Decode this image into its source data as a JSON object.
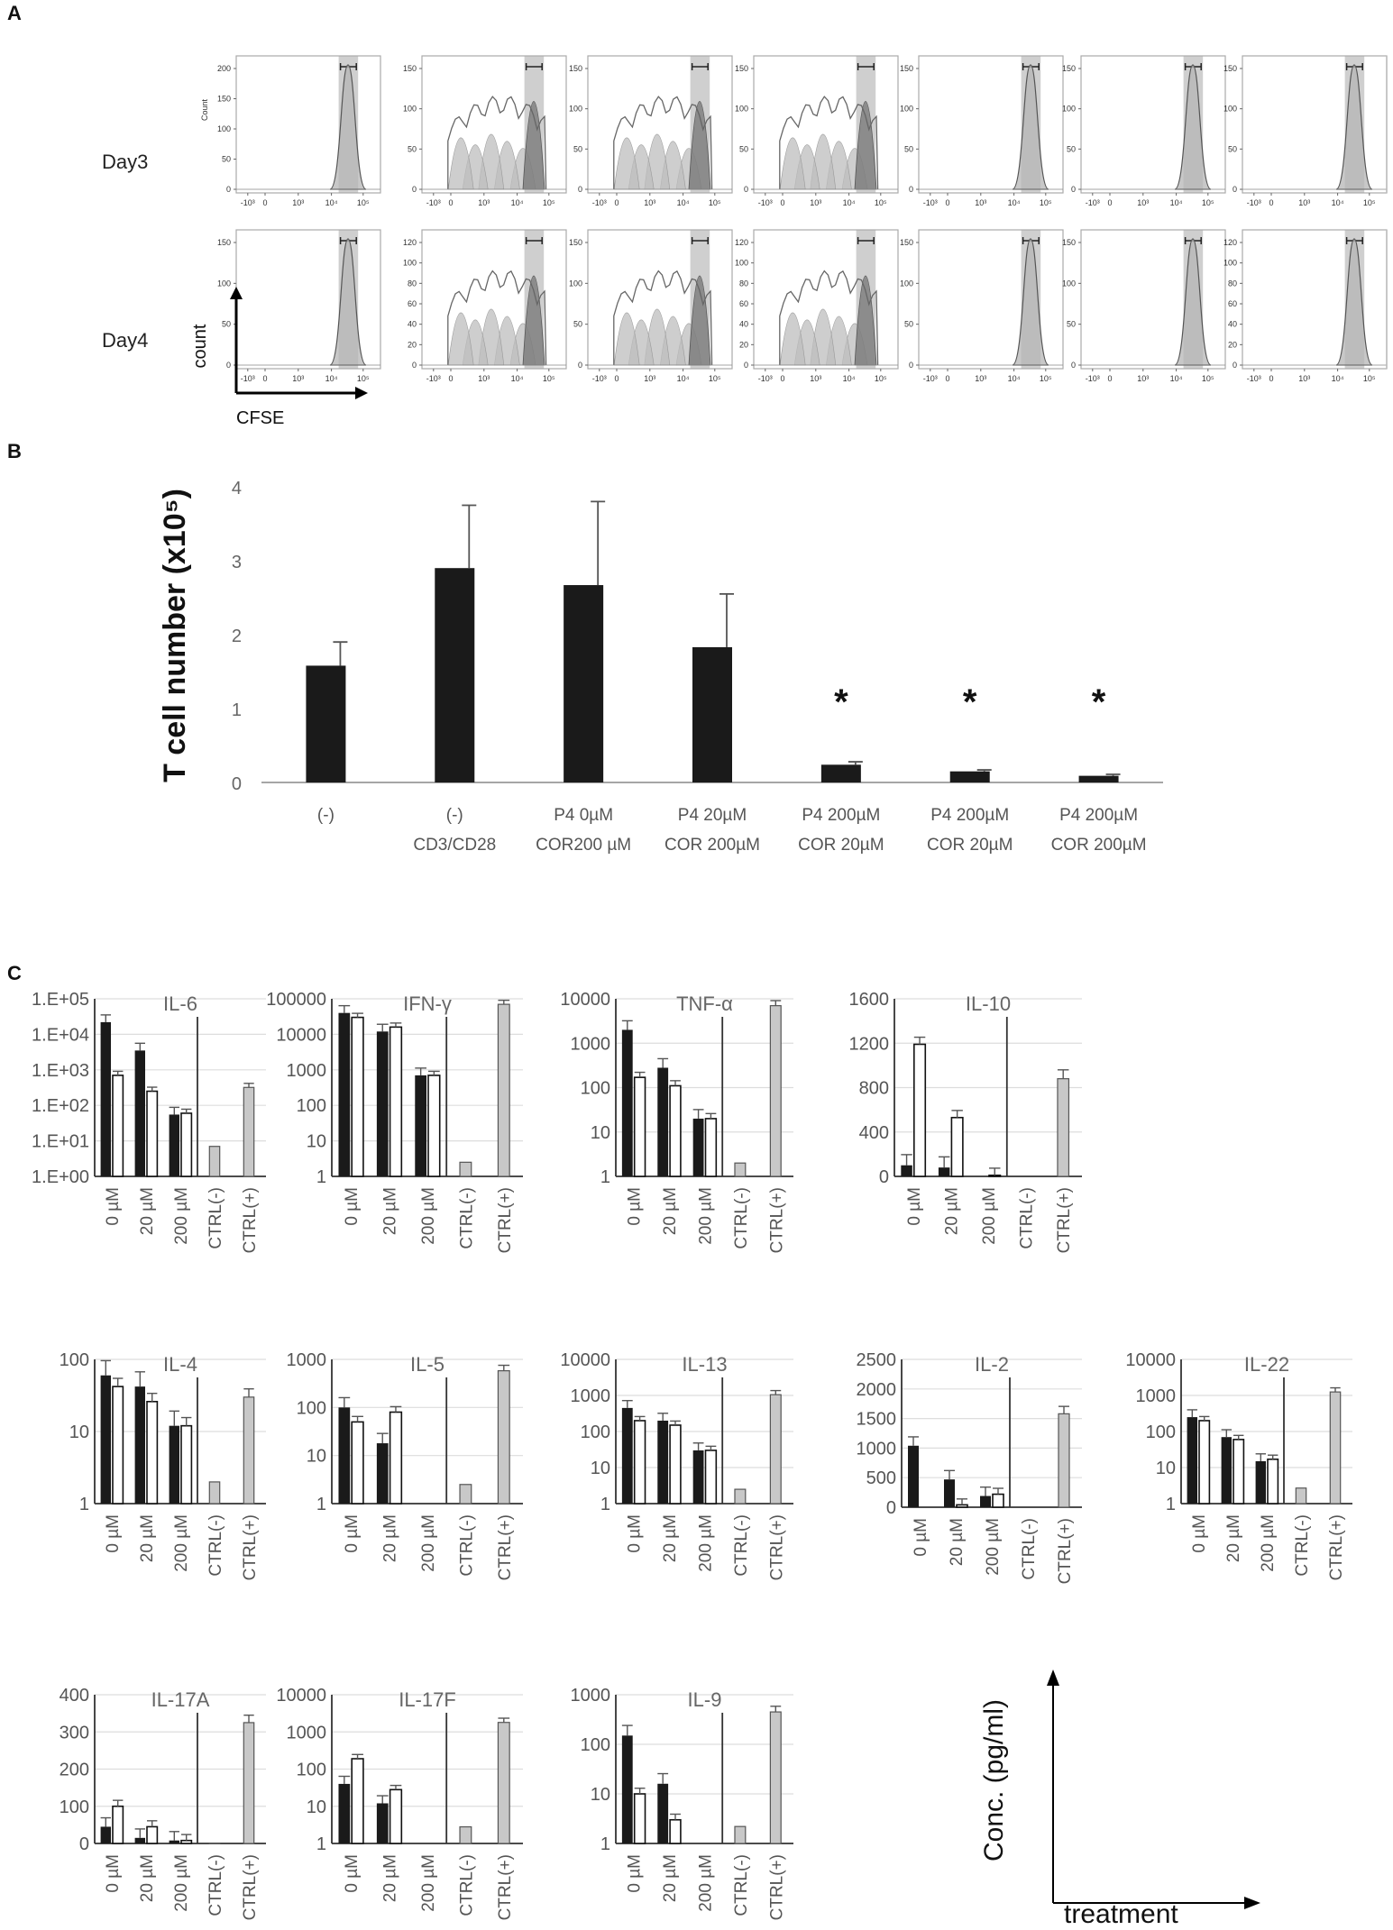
{
  "panel_a": {
    "letter": "A",
    "rows": [
      {
        "label": "Day3",
        "ymax": [
          200,
          150,
          150,
          150,
          150,
          150,
          150
        ],
        "ytick_labels": [
          [
            "0",
            "50",
            "100",
            "150",
            "200"
          ],
          [
            "0",
            "50",
            "100",
            "150"
          ],
          [
            "0",
            "50",
            "100",
            "150"
          ],
          [
            "0",
            "50",
            "100",
            "150"
          ],
          [
            "0",
            "50",
            "100",
            "150"
          ],
          [
            "0",
            "50",
            "100",
            "150"
          ],
          [
            "0",
            "50",
            "100",
            "150"
          ]
        ],
        "ylabel_first": "Count"
      },
      {
        "label": "Day4",
        "ymax": [
          150,
          120,
          150,
          120,
          150,
          150,
          120
        ],
        "ytick_labels": [
          [
            "0",
            "50",
            "100",
            "150"
          ],
          [
            "0",
            "20",
            "40",
            "60",
            "80",
            "100",
            "120"
          ],
          [
            "0",
            "50",
            "100",
            "150"
          ],
          [
            "0",
            "20",
            "40",
            "60",
            "80",
            "100",
            "120"
          ],
          [
            "0",
            "50",
            "100",
            "150"
          ],
          [
            "0",
            "50",
            "100",
            "150"
          ],
          [
            "0",
            "20",
            "40",
            "60",
            "80",
            "100",
            "120"
          ]
        ],
        "ylabel_first": ""
      }
    ],
    "x_tick_labels": [
      "-10³",
      "0",
      "10³",
      "10⁴",
      "10⁵"
    ],
    "proliferating_panels": [
      1,
      2,
      3
    ],
    "axis_legend": {
      "y": "count",
      "x": "CFSE"
    }
  },
  "panel_b": {
    "letter": "B",
    "chart_data": {
      "type": "bar",
      "ylabel": "T cell number (x10⁵)",
      "ylim": [
        0,
        4
      ],
      "yticks": [
        "0",
        "1",
        "2",
        "3",
        "4"
      ],
      "categories": [
        [
          "(-)",
          ""
        ],
        [
          "(-)",
          "CD3/CD28"
        ],
        [
          "P4 0µM",
          "COR200 µM"
        ],
        [
          "P4 20µM",
          "COR 200µM"
        ],
        [
          "P4      200µM",
          "COR 20µM"
        ],
        [
          "P4 200µM",
          "COR 20µM"
        ],
        [
          "P4 200µM",
          "COR 200µM"
        ]
      ],
      "values": [
        1.58,
        2.9,
        2.67,
        1.83,
        0.24,
        0.15,
        0.09
      ],
      "errors": [
        0.32,
        0.85,
        1.13,
        0.72,
        0.04,
        0.02,
        0.02
      ],
      "significance": [
        "",
        "",
        "",
        "",
        "*",
        "*",
        "*"
      ],
      "bar_color": "#1a1a1a"
    }
  },
  "panel_c": {
    "letter": "C",
    "x_labels": [
      "0 µM",
      "20 µM",
      "200 µM",
      "CTRL(-)",
      "CTRL(+)"
    ],
    "colors": {
      "black": "#1a1a1a",
      "white": "#ffffff",
      "gray": "#c8c8c8"
    },
    "axis_legend": {
      "y": "Conc. (pg/ml)",
      "x": "treatment"
    },
    "chart_data": [
      {
        "type": "bar",
        "title": "IL-6",
        "scale": "log",
        "ylim": [
          1,
          100000
        ],
        "yticks": [
          "1.E+00",
          "1.E+01",
          "1.E+02",
          "1.E+03",
          "1.E+04",
          "1.E+05"
        ],
        "black": [
          22000,
          3500,
          55
        ],
        "white": [
          700,
          250,
          60
        ],
        "ctrl_neg": 7,
        "ctrl_pos": 320
      },
      {
        "type": "bar",
        "title": "IFN-γ",
        "scale": "log",
        "ylim": [
          1,
          100000
        ],
        "yticks": [
          "1",
          "10",
          "100",
          "1000",
          "10000",
          "100000"
        ],
        "black": [
          40000,
          12000,
          700
        ],
        "white": [
          30000,
          16000,
          700
        ],
        "ctrl_neg": 2.5,
        "ctrl_pos": 70000
      },
      {
        "type": "bar",
        "title": "TNF-α",
        "scale": "log",
        "ylim": [
          1,
          10000
        ],
        "yticks": [
          "1",
          "10",
          "100",
          "1000",
          "10000"
        ],
        "black": [
          2000,
          280,
          20
        ],
        "white": [
          170,
          110,
          20
        ],
        "ctrl_neg": 2,
        "ctrl_pos": 7000
      },
      {
        "type": "bar",
        "title": "IL-10",
        "scale": "linear",
        "ylim": [
          0,
          1600
        ],
        "yticks": [
          "0",
          "400",
          "800",
          "1200",
          "1600"
        ],
        "black": [
          100,
          80,
          0
        ],
        "white": [
          1190,
          530,
          10
        ],
        "ctrl_neg": 0,
        "ctrl_pos": 880
      },
      {
        "type": "bar",
        "title": "IL-4",
        "scale": "log",
        "ylim": [
          1,
          100
        ],
        "yticks": [
          "1",
          "10",
          "100"
        ],
        "black": [
          60,
          42,
          12
        ],
        "white": [
          42,
          26,
          12
        ],
        "ctrl_neg": 2,
        "ctrl_pos": 30
      },
      {
        "type": "bar",
        "title": "IL-5",
        "scale": "log",
        "ylim": [
          1,
          1000
        ],
        "yticks": [
          "1",
          "10",
          "100",
          "1000"
        ],
        "black": [
          100,
          18,
          0
        ],
        "white": [
          50,
          80,
          0
        ],
        "ctrl_neg": 2.5,
        "ctrl_pos": 580
      },
      {
        "type": "bar",
        "title": "IL-13",
        "scale": "log",
        "ylim": [
          1,
          10000
        ],
        "yticks": [
          "1",
          "10",
          "100",
          "1000",
          "10000"
        ],
        "black": [
          450,
          200,
          30
        ],
        "white": [
          200,
          150,
          30
        ],
        "ctrl_neg": 2.5,
        "ctrl_pos": 1050
      },
      {
        "type": "bar",
        "title": "IL-2",
        "scale": "linear",
        "ylim": [
          0,
          2500
        ],
        "yticks": [
          "0",
          "500",
          "1000",
          "1500",
          "2000",
          "2500"
        ],
        "black": [
          1040,
          470,
          190
        ],
        "white": [
          0,
          40,
          220
        ],
        "ctrl_neg": 0,
        "ctrl_pos": 1580
      },
      {
        "type": "bar",
        "title": "IL-22",
        "scale": "log",
        "ylim": [
          1,
          10000
        ],
        "yticks": [
          "1",
          "10",
          "100",
          "1000",
          "10000"
        ],
        "black": [
          250,
          70,
          15
        ],
        "white": [
          200,
          60,
          17
        ],
        "ctrl_neg": 2.7,
        "ctrl_pos": 1250
      },
      {
        "type": "bar",
        "title": "IL-17A",
        "scale": "linear",
        "ylim": [
          0,
          400
        ],
        "yticks": [
          "0",
          "100",
          "200",
          "300",
          "400"
        ],
        "black": [
          45,
          15,
          8
        ],
        "white": [
          100,
          45,
          8
        ],
        "ctrl_neg": 1,
        "ctrl_pos": 325
      },
      {
        "type": "bar",
        "title": "IL-17F",
        "scale": "log",
        "ylim": [
          1,
          10000
        ],
        "yticks": [
          "1",
          "10",
          "100",
          "1000",
          "10000"
        ],
        "black": [
          40,
          12,
          0
        ],
        "white": [
          190,
          28,
          0
        ],
        "ctrl_neg": 2.8,
        "ctrl_pos": 1800
      },
      {
        "type": "bar",
        "title": "IL-9",
        "scale": "log",
        "ylim": [
          1,
          1000
        ],
        "yticks": [
          "1",
          "10",
          "100",
          "1000"
        ],
        "black": [
          150,
          16,
          0
        ],
        "white": [
          10,
          3,
          0
        ],
        "ctrl_neg": 2.2,
        "ctrl_pos": 450
      }
    ]
  }
}
